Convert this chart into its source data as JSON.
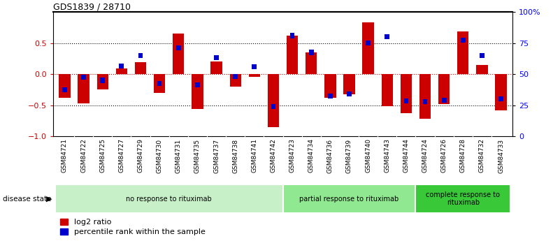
{
  "title": "GDS1839 / 28710",
  "samples": [
    "GSM84721",
    "GSM84722",
    "GSM84725",
    "GSM84727",
    "GSM84729",
    "GSM84730",
    "GSM84731",
    "GSM84735",
    "GSM84737",
    "GSM84738",
    "GSM84741",
    "GSM84742",
    "GSM84723",
    "GSM84734",
    "GSM84736",
    "GSM84739",
    "GSM84740",
    "GSM84743",
    "GSM84744",
    "GSM84724",
    "GSM84726",
    "GSM84728",
    "GSM84732",
    "GSM84733"
  ],
  "log2_ratio": [
    -0.38,
    -0.47,
    -0.25,
    0.09,
    0.19,
    -0.3,
    0.65,
    -0.56,
    0.2,
    -0.2,
    -0.04,
    -0.85,
    0.62,
    0.35,
    -0.38,
    -0.32,
    0.83,
    -0.52,
    -0.63,
    -0.72,
    -0.48,
    0.69,
    0.15,
    -0.58
  ],
  "percentile_rank_norm": [
    -0.25,
    -0.05,
    -0.1,
    0.13,
    0.3,
    -0.15,
    0.42,
    -0.17,
    0.27,
    -0.04,
    0.12,
    -0.52,
    0.62,
    0.35,
    -0.35,
    -0.32,
    0.5,
    0.6,
    -0.43,
    -0.44,
    -0.42,
    0.55,
    0.3,
    -0.4
  ],
  "groups": [
    {
      "label": "no response to rituximab",
      "start": 0,
      "end": 12,
      "color": "#c8f0c8"
    },
    {
      "label": "partial response to rituximab",
      "start": 12,
      "end": 19,
      "color": "#90e890"
    },
    {
      "label": "complete response to\nrituximab",
      "start": 19,
      "end": 24,
      "color": "#38c838"
    }
  ],
  "bar_color_red": "#cc0000",
  "bar_color_blue": "#0000cc",
  "ylim": [
    -1.0,
    1.0
  ],
  "yticks_left": [
    -1.0,
    -0.5,
    0.0,
    0.5
  ],
  "yticks_right_vals": [
    0,
    25,
    50,
    75,
    100
  ],
  "yticks_right_labels": [
    "0",
    "25",
    "50",
    "75",
    "100%"
  ],
  "disease_state_label": "disease state",
  "legend_red": "log2 ratio",
  "legend_blue": "percentile rank within the sample"
}
